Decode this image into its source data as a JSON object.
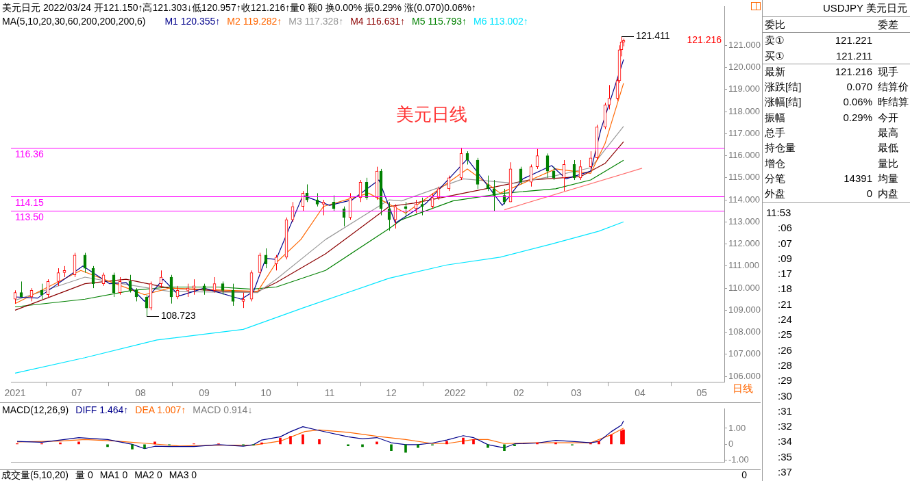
{
  "chart_data": [
    {
      "type": "candlestick",
      "title": "美元日元 2022/03/24 开121.150↑高121.303↓低120.957↑收121.216↑量0 额0 换0.00% 振0.29% 涨(0.070)0.06%↑",
      "subtitle": "MA(5,10,20,30,60,200,200,200,6)",
      "x": [
        "2021-06-01",
        "2021-06-04",
        "2021-06-09",
        "2021-06-14",
        "2021-06-17",
        "2021-06-22",
        "2021-06-25",
        "2021-06-30",
        "2021-07-05",
        "2021-07-09",
        "2021-07-14",
        "2021-07-19",
        "2021-07-22",
        "2021-07-27",
        "2021-07-30",
        "2021-08-04",
        "2021-08-06",
        "2021-08-11",
        "2021-08-16",
        "2021-08-19",
        "2021-08-24",
        "2021-08-27",
        "2021-09-01",
        "2021-09-06",
        "2021-09-10",
        "2021-09-15",
        "2021-09-20",
        "2021-09-24",
        "2021-09-28",
        "2021-10-01",
        "2021-10-06",
        "2021-10-11",
        "2021-10-14",
        "2021-10-19",
        "2021-10-21",
        "2021-10-26",
        "2021-10-29",
        "2021-11-03",
        "2021-11-08",
        "2021-11-11",
        "2021-11-16",
        "2021-11-19",
        "2021-11-24",
        "2021-11-26",
        "2021-11-30",
        "2021-12-03",
        "2021-12-08",
        "2021-12-13",
        "2021-12-16",
        "2021-12-21",
        "2021-12-24",
        "2021-12-29",
        "2022-01-04",
        "2022-01-07",
        "2022-01-12",
        "2022-01-17",
        "2022-01-20",
        "2022-01-25",
        "2022-01-28",
        "2022-02-02",
        "2022-02-07",
        "2022-02-10",
        "2022-02-15",
        "2022-02-18",
        "2022-02-23",
        "2022-02-28",
        "2022-03-03",
        "2022-03-08",
        "2022-03-11",
        "2022-03-15",
        "2022-03-17",
        "2022-03-21",
        "2022-03-22",
        "2022-03-23",
        "2022-03-24"
      ],
      "ohlc": [
        [
          109.5,
          109.9,
          109.3,
          109.8
        ],
        [
          109.8,
          110.3,
          109.6,
          109.6
        ],
        [
          109.6,
          110.0,
          109.4,
          109.9
        ],
        [
          109.9,
          110.2,
          109.5,
          109.7
        ],
        [
          109.7,
          110.4,
          109.6,
          110.3
        ],
        [
          110.3,
          110.9,
          110.1,
          110.7
        ],
        [
          110.7,
          111.0,
          110.5,
          110.8
        ],
        [
          110.6,
          111.6,
          110.5,
          111.5
        ],
        [
          111.5,
          111.6,
          110.7,
          110.9
        ],
        [
          110.9,
          111.0,
          110.0,
          110.2
        ],
        [
          110.2,
          110.7,
          110.1,
          110.6
        ],
        [
          110.6,
          110.7,
          109.6,
          109.8
        ],
        [
          109.8,
          110.5,
          109.7,
          110.3
        ],
        [
          110.3,
          110.6,
          109.8,
          109.9
        ],
        [
          109.9,
          110.0,
          109.4,
          109.6
        ],
        [
          109.6,
          109.7,
          108.723,
          109.1
        ],
        [
          109.1,
          110.3,
          109.0,
          110.2
        ],
        [
          110.2,
          110.8,
          110.0,
          110.5
        ],
        [
          110.5,
          110.6,
          109.3,
          109.6
        ],
        [
          109.6,
          110.1,
          109.5,
          109.9
        ],
        [
          109.9,
          110.2,
          109.6,
          110.0
        ],
        [
          110.0,
          110.4,
          109.7,
          110.1
        ],
        [
          110.1,
          110.2,
          109.7,
          109.9
        ],
        [
          109.9,
          110.5,
          109.8,
          110.2
        ],
        [
          110.2,
          110.3,
          109.7,
          109.9
        ],
        [
          109.9,
          110.2,
          109.2,
          109.4
        ],
        [
          109.4,
          109.8,
          109.1,
          109.5
        ],
        [
          109.5,
          110.8,
          109.4,
          110.7
        ],
        [
          110.7,
          111.6,
          110.6,
          111.5
        ],
        [
          111.5,
          111.8,
          110.9,
          111.1
        ],
        [
          111.1,
          111.5,
          110.8,
          111.4
        ],
        [
          111.4,
          113.2,
          111.3,
          113.1
        ],
        [
          113.1,
          113.9,
          113.0,
          113.7
        ],
        [
          113.7,
          114.4,
          113.5,
          114.3
        ],
        [
          114.3,
          114.7,
          113.9,
          114.0
        ],
        [
          114.0,
          114.3,
          113.7,
          113.8
        ],
        [
          113.8,
          114.0,
          113.3,
          113.9
        ],
        [
          113.9,
          114.2,
          113.5,
          113.6
        ],
        [
          113.6,
          113.7,
          112.8,
          113.2
        ],
        [
          113.2,
          114.3,
          113.1,
          114.1
        ],
        [
          114.1,
          114.9,
          113.9,
          114.8
        ],
        [
          114.8,
          115.0,
          114.0,
          114.1
        ],
        [
          114.1,
          115.5,
          114.0,
          115.3
        ],
        [
          115.3,
          115.4,
          113.3,
          113.6
        ],
        [
          113.6,
          113.9,
          112.6,
          113.1
        ],
        [
          113.1,
          113.8,
          112.7,
          113.7
        ],
        [
          113.7,
          113.9,
          113.2,
          113.6
        ],
        [
          113.6,
          114.0,
          113.4,
          113.8
        ],
        [
          113.8,
          114.1,
          113.3,
          113.7
        ],
        [
          113.7,
          114.3,
          113.6,
          114.1
        ],
        [
          114.1,
          114.6,
          114.0,
          114.5
        ],
        [
          114.5,
          115.1,
          114.4,
          115.0
        ],
        [
          115.0,
          116.36,
          114.9,
          116.1
        ],
        [
          116.1,
          116.2,
          115.6,
          115.8
        ],
        [
          115.8,
          115.9,
          114.5,
          114.7
        ],
        [
          114.7,
          115.1,
          114.4,
          114.5
        ],
        [
          114.5,
          114.9,
          113.5,
          114.2
        ],
        [
          114.2,
          114.5,
          113.8,
          113.9
        ],
        [
          113.9,
          115.7,
          113.9,
          115.4
        ],
        [
          115.4,
          115.5,
          114.7,
          114.8
        ],
        [
          114.8,
          115.6,
          114.6,
          115.5
        ],
        [
          115.5,
          116.3,
          115.4,
          116.0
        ],
        [
          116.0,
          116.1,
          115.0,
          115.3
        ],
        [
          115.3,
          115.5,
          114.9,
          115.0
        ],
        [
          115.0,
          115.8,
          114.4,
          115.6
        ],
        [
          115.6,
          115.8,
          114.9,
          115.0
        ],
        [
          115.0,
          115.8,
          114.9,
          115.5
        ],
        [
          115.5,
          116.2,
          115.4,
          115.9
        ],
        [
          115.9,
          117.4,
          115.8,
          117.3
        ],
        [
          117.3,
          118.4,
          117.2,
          118.3
        ],
        [
          118.3,
          119.2,
          118.1,
          118.6
        ],
        [
          118.6,
          119.5,
          118.5,
          119.4
        ],
        [
          119.4,
          121.0,
          119.3,
          120.8
        ],
        [
          120.8,
          121.411,
          120.5,
          121.15
        ],
        [
          121.15,
          121.303,
          120.957,
          121.216
        ]
      ],
      "series": [
        {
          "type": "line",
          "name": "M1 120.355↑",
          "color": "#00008b",
          "x": [
            "2021-06-01",
            "2021-06-12",
            "2021-07-04",
            "2021-07-17",
            "2021-07-25",
            "2021-08-03",
            "2021-08-12",
            "2021-08-20",
            "2021-09-01",
            "2021-09-19",
            "2021-09-25",
            "2021-10-01",
            "2021-10-06",
            "2021-10-19",
            "2021-11-01",
            "2021-11-12",
            "2021-11-25",
            "2021-12-03",
            "2021-12-18",
            "2022-01-07",
            "2022-01-16",
            "2022-01-24",
            "2022-02-03",
            "2022-02-17",
            "2022-02-24",
            "2022-03-08",
            "2022-03-13",
            "2022-03-24"
          ],
          "values": [
            109.6,
            109.55,
            111.0,
            110.2,
            110.25,
            109.4,
            110.4,
            109.65,
            110.0,
            109.5,
            109.85,
            111.35,
            111.3,
            114.2,
            113.75,
            114.0,
            114.9,
            112.95,
            113.85,
            115.85,
            114.75,
            113.75,
            114.95,
            115.55,
            114.95,
            115.3,
            117.2,
            120.355
          ]
        },
        {
          "type": "line",
          "name": "M2 119.282↑",
          "color": "#ff6600",
          "x": [
            "2021-06-01",
            "2021-07-03",
            "2021-07-17",
            "2021-08-03",
            "2021-08-15",
            "2021-09-27",
            "2021-10-06",
            "2021-10-18",
            "2021-10-29",
            "2021-11-20",
            "2021-12-08",
            "2022-01-07",
            "2022-01-23",
            "2022-02-19",
            "2022-03-08",
            "2022-03-15",
            "2022-03-24"
          ],
          "values": [
            109.3,
            110.8,
            110.3,
            109.7,
            110.0,
            109.85,
            111.15,
            112.2,
            113.7,
            114.3,
            113.4,
            115.4,
            114.3,
            115.4,
            115.2,
            116.55,
            119.282
          ]
        },
        {
          "type": "line",
          "name": "M3 117.328↑",
          "color": "#999999",
          "x": [
            "2021-06-01",
            "2021-07-05",
            "2021-07-23",
            "2021-08-15",
            "2021-09-27",
            "2021-10-06",
            "2021-10-30",
            "2021-11-30",
            "2021-12-06",
            "2022-01-05",
            "2022-01-30",
            "2022-02-19",
            "2022-03-08",
            "2022-03-24"
          ],
          "values": [
            109.45,
            110.5,
            110.2,
            109.85,
            109.8,
            110.4,
            112.2,
            114.0,
            113.95,
            114.95,
            114.75,
            115.1,
            115.45,
            117.328
          ]
        },
        {
          "type": "line",
          "name": "M4 116.631↑",
          "color": "#8b0000",
          "x": [
            "2021-06-01",
            "2021-07-05",
            "2021-07-25",
            "2021-08-15",
            "2021-09-13",
            "2021-09-27",
            "2021-10-06",
            "2021-10-30",
            "2021-11-30",
            "2021-12-12",
            "2022-01-16",
            "2022-02-06",
            "2022-03-03",
            "2022-03-15",
            "2022-03-24"
          ],
          "values": [
            109.0,
            110.2,
            110.4,
            110.0,
            109.85,
            109.85,
            110.25,
            111.55,
            113.7,
            113.85,
            114.5,
            114.9,
            115.05,
            115.65,
            116.631
          ]
        },
        {
          "type": "line",
          "name": "M5 115.793↑",
          "color": "#008000",
          "x": [
            "2021-06-01",
            "2021-07-05",
            "2021-07-28",
            "2021-08-15",
            "2021-09-08",
            "2021-09-24",
            "2021-10-06",
            "2021-10-30",
            "2021-11-30",
            "2021-12-06",
            "2021-12-31",
            "2022-01-25",
            "2022-02-19",
            "2022-03-08",
            "2022-03-24"
          ],
          "values": [
            109.15,
            109.5,
            109.9,
            110.05,
            110.05,
            109.95,
            110.05,
            110.8,
            112.7,
            113.1,
            113.95,
            114.3,
            114.5,
            114.9,
            115.793
          ]
        },
        {
          "type": "line",
          "name": "M6 113.002↑",
          "color": "#00e5ff",
          "x": [
            "2021-06-01",
            "2021-07-05",
            "2021-08-09",
            "2021-09-20",
            "2021-10-19",
            "2021-11-30",
            "2021-12-28",
            "2022-01-23",
            "2022-02-17",
            "2022-03-12",
            "2022-03-24"
          ],
          "values": [
            106.15,
            106.85,
            107.65,
            108.13,
            109.1,
            110.45,
            111.05,
            111.4,
            112.0,
            112.58,
            113.002
          ]
        },
        {
          "type": "line",
          "color": "#ff7070",
          "x": [
            "2022-01-25",
            "2022-04-02"
          ],
          "values": [
            113.55,
            115.43
          ]
        }
      ],
      "ref_lines": [
        {
          "axis": "y",
          "value": 116.36,
          "label": "116.36",
          "color": "#ff00ff"
        },
        {
          "axis": "y",
          "value": 114.15,
          "label": "114.15",
          "color": "#ff00ff"
        },
        {
          "axis": "y",
          "value": 113.5,
          "label": "113.50",
          "color": "#ff00ff"
        }
      ],
      "annotations": [
        {
          "text": "121.411",
          "x": "2022-03-23",
          "y": 121.411
        },
        {
          "text": "108.723",
          "x": "2021-08-04",
          "y": 108.723
        },
        "121.216",
        "美元日线",
        "日线"
      ],
      "xlim": [
        "2021-05-30",
        "2022-05-12"
      ],
      "xticks": [
        {
          "value": "2021-06-01",
          "label": "2021"
        },
        {
          "value": "2021-07-01",
          "label": "07"
        },
        {
          "value": "2021-08-01",
          "label": "08"
        },
        {
          "value": "2021-09-01",
          "label": "09"
        },
        {
          "value": "2021-10-01",
          "label": "10"
        },
        {
          "value": "2021-11-01",
          "label": "11"
        },
        {
          "value": "2021-12-01",
          "label": "12"
        },
        {
          "value": "2022-01-01",
          "label": "2022"
        },
        {
          "value": "2022-02-01",
          "label": "02"
        },
        {
          "value": "2022-03-01",
          "label": "03"
        },
        {
          "value": "2022-04-01",
          "label": "04"
        },
        {
          "value": "2022-05-01",
          "label": "05"
        }
      ],
      "ylim": [
        105.75,
        122.75
      ],
      "yticks": [
        {
          "value": 106,
          "label": "106.000"
        },
        {
          "value": 107,
          "label": "107.000"
        },
        {
          "value": 108,
          "label": "108.000"
        },
        {
          "value": 109,
          "label": "109.000"
        },
        {
          "value": 110,
          "label": "110.000"
        },
        {
          "value": 111,
          "label": "111.000"
        },
        {
          "value": 112,
          "label": "112.000"
        },
        {
          "value": 113,
          "label": "113.000"
        },
        {
          "value": 114,
          "label": "114.000"
        },
        {
          "value": 115,
          "label": "115.000"
        },
        {
          "value": 116,
          "label": "116.000"
        },
        {
          "value": 117,
          "label": "117.000"
        },
        {
          "value": 118,
          "label": "118.000"
        },
        {
          "value": 119,
          "label": "119.000"
        },
        {
          "value": 120,
          "label": "120.000"
        },
        {
          "value": 121,
          "label": "121.000"
        }
      ],
      "legend": "top left",
      "marker": "none"
    },
    {
      "type": "line",
      "title": "MACD(12,26,9)",
      "series": [
        {
          "name": "DIFF 1.464↑",
          "color": "#00008b",
          "x": [
            "2021-06-02",
            "2021-06-14",
            "2021-06-23",
            "2021-07-02",
            "2021-07-16",
            "2021-07-28",
            "2021-08-03",
            "2021-08-08",
            "2021-08-15",
            "2021-08-27",
            "2021-09-08",
            "2021-09-20",
            "2021-09-25",
            "2021-09-29",
            "2021-10-08",
            "2021-10-13",
            "2021-10-19",
            "2021-10-27",
            "2021-11-10",
            "2021-11-17",
            "2021-11-24",
            "2021-12-01",
            "2021-12-08",
            "2021-12-14",
            "2021-12-21",
            "2021-12-28",
            "2022-01-05",
            "2022-01-10",
            "2022-01-17",
            "2022-01-25",
            "2022-01-30",
            "2022-02-10",
            "2022-02-19",
            "2022-02-27",
            "2022-03-08",
            "2022-03-12",
            "2022-03-18",
            "2022-03-23",
            "2022-03-24"
          ],
          "values": [
            0.18,
            0.13,
            0.27,
            0.42,
            0.3,
            0.0,
            -0.27,
            -0.12,
            -0.14,
            -0.14,
            -0.02,
            -0.12,
            -0.02,
            0.27,
            0.47,
            0.79,
            1.1,
            0.86,
            0.47,
            0.34,
            0.42,
            0.1,
            -0.02,
            -0.02,
            0.08,
            0.27,
            0.54,
            0.42,
            -0.02,
            -0.22,
            0.03,
            0.08,
            0.25,
            0.18,
            0.1,
            0.18,
            0.79,
            1.2,
            1.464
          ]
        },
        {
          "name": "DEA 1.007↑",
          "color": "#ff6600",
          "x": [
            "2021-06-02",
            "2021-06-23",
            "2021-07-05",
            "2021-07-20",
            "2021-08-05",
            "2021-08-20",
            "2021-09-10",
            "2021-09-25",
            "2021-10-08",
            "2021-10-20",
            "2021-10-27",
            "2021-11-10",
            "2021-11-24",
            "2021-12-08",
            "2021-12-21",
            "2021-12-28",
            "2022-01-10",
            "2022-01-17",
            "2022-01-25",
            "2022-02-10",
            "2022-02-27",
            "2022-03-08",
            "2022-03-18",
            "2022-03-24"
          ],
          "values": [
            0.15,
            0.2,
            0.3,
            0.2,
            0.05,
            -0.1,
            -0.05,
            -0.05,
            0.2,
            0.8,
            0.9,
            0.75,
            0.5,
            0.3,
            0.05,
            0.05,
            0.3,
            0.3,
            0.05,
            0.1,
            0.1,
            0.1,
            0.6,
            1.007
          ]
        },
        {
          "type": "bar",
          "name": "MACD 0.914↓",
          "color": "#808080",
          "x": [
            "2021-06-02",
            "2021-06-14",
            "2021-06-23",
            "2021-07-02",
            "2021-07-16",
            "2021-07-28",
            "2021-08-03",
            "2021-08-08",
            "2021-08-15",
            "2021-08-27",
            "2021-09-08",
            "2021-09-20",
            "2021-09-25",
            "2021-09-29",
            "2021-10-08",
            "2021-10-13",
            "2021-10-19",
            "2021-10-27",
            "2021-11-10",
            "2021-11-17",
            "2021-11-24",
            "2021-12-01",
            "2021-12-08",
            "2021-12-14",
            "2021-12-21",
            "2021-12-28",
            "2022-01-05",
            "2022-01-10",
            "2022-01-17",
            "2022-01-25",
            "2022-01-30",
            "2022-02-10",
            "2022-02-19",
            "2022-02-27",
            "2022-03-08",
            "2022-03-12",
            "2022-03-18",
            "2022-03-23",
            "2022-03-24"
          ],
          "values": [
            0.05,
            0.05,
            0.1,
            0.15,
            -0.15,
            -0.3,
            -0.25,
            0.15,
            -0.05,
            0.03,
            0.03,
            -0.05,
            -0.05,
            0.1,
            0.4,
            0.5,
            0.6,
            0.3,
            -0.1,
            -0.15,
            0.15,
            -0.4,
            -0.5,
            -0.2,
            -0.05,
            0.2,
            0.4,
            0.3,
            -0.2,
            -0.4,
            -0.1,
            0.1,
            0.1,
            -0.05,
            0.05,
            0.2,
            0.6,
            0.85,
            0.914
          ],
          "colors": [
            "#ff0000",
            "#ff0000",
            "#ff0000",
            "#ff0000",
            "#008000",
            "#008000",
            "#008000",
            "#ff0000",
            "#008000",
            "#ff0000",
            "#ff0000",
            "#008000",
            "#008000",
            "#ff0000",
            "#ff0000",
            "#ff0000",
            "#ff0000",
            "#ff0000",
            "#008000",
            "#008000",
            "#ff0000",
            "#008000",
            "#008000",
            "#008000",
            "#008000",
            "#ff0000",
            "#ff0000",
            "#ff0000",
            "#008000",
            "#008000",
            "#008000",
            "#ff0000",
            "#ff0000",
            "#008000",
            "#ff0000",
            "#ff0000",
            "#ff0000",
            "#ff0000",
            "#ff0000"
          ]
        }
      ],
      "xlim": [
        "2021-05-30",
        "2022-05-12"
      ],
      "ylim": [
        -1.1,
        2.2
      ],
      "yticks": [
        {
          "value": 1,
          "label": "1.00"
        },
        0,
        {
          "value": -1,
          "label": "-1.00"
        }
      ],
      "tick_labels": "y",
      "legend": "top left",
      "marker": "none"
    },
    {
      "type": "other",
      "title": "成交量(5,10,20)",
      "annotations": [
        "量 0",
        "MA1 0",
        "MA2 0",
        "MA3 0",
        "0"
      ]
    },
    {
      "type": "other",
      "title": "USDJPY 美元日元",
      "annotations": [
        "委比",
        null,
        "委差",
        "卖①",
        "121.221",
        null,
        "买①",
        "121.211",
        null,
        "最新",
        "121.216",
        "现手",
        "涨跌[结]",
        "0.070",
        "结算价",
        "涨幅[结]",
        "0.06%",
        "昨结算",
        "振幅",
        "0.29%",
        "今开",
        "总手",
        null,
        "最高",
        "持仓量",
        null,
        "最低",
        "增仓",
        null,
        "量比",
        "分笔",
        "14391",
        "均量",
        "外盘",
        "0",
        "内盘"
      ]
    },
    {
      "type": "other",
      "annotations": [
        "11:53",
        ":06",
        ":07",
        ":09",
        ":17",
        ":18",
        ":21",
        ":24",
        ":25",
        ":26",
        ":28",
        ":29",
        ":30",
        ":31",
        ":32",
        ":34",
        ":35",
        ":37"
      ]
    }
  ]
}
